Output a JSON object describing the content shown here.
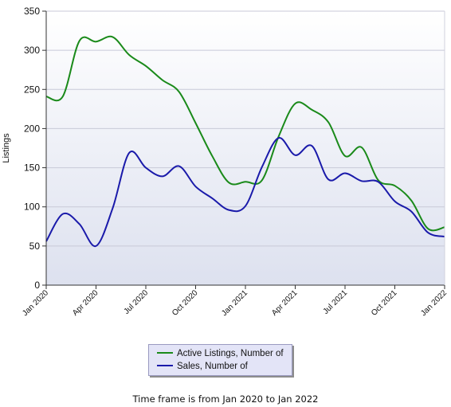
{
  "chart_data": {
    "type": "line",
    "ylabel": "Listings",
    "ylim": [
      0,
      350
    ],
    "yticks": [
      0,
      50,
      100,
      150,
      200,
      250,
      300,
      350
    ],
    "xlim": [
      "2020-01",
      "2022-01"
    ],
    "xtick_labels": [
      "Jan 2020",
      "Apr 2020",
      "Jul 2020",
      "Oct 2020",
      "Jan 2021",
      "Apr 2021",
      "Jul 2021",
      "Oct 2021",
      "Jan 2022"
    ],
    "x": [
      "2020-01",
      "2020-02",
      "2020-03",
      "2020-04",
      "2020-05",
      "2020-06",
      "2020-07",
      "2020-08",
      "2020-09",
      "2020-10",
      "2020-11",
      "2020-12",
      "2021-01",
      "2021-02",
      "2021-03",
      "2021-04",
      "2021-05",
      "2021-06",
      "2021-07",
      "2021-08",
      "2021-09",
      "2021-10",
      "2021-11",
      "2021-12",
      "2022-01"
    ],
    "series": [
      {
        "name": "Active Listings, Number of",
        "color": "#1a8a1a",
        "values": [
          241,
          241,
          312,
          311,
          317,
          294,
          280,
          262,
          247,
          207,
          165,
          131,
          132,
          134,
          190,
          232,
          224,
          208,
          165,
          176,
          134,
          127,
          108,
          72,
          74
        ]
      },
      {
        "name": "Sales, Number of",
        "color": "#1a1aaa",
        "values": [
          56,
          91,
          78,
          50,
          98,
          169,
          150,
          139,
          152,
          126,
          111,
          96,
          101,
          151,
          188,
          166,
          178,
          135,
          143,
          133,
          132,
          107,
          94,
          67,
          62
        ]
      }
    ],
    "grid": true,
    "legend_position": "bottom"
  },
  "footnote": "Time frame is from Jan 2020 to Jan 2022",
  "colors": {
    "plot_background_top": "#ffffff",
    "plot_background_bottom": "#dde1ef",
    "grid": "#c8cad8"
  }
}
